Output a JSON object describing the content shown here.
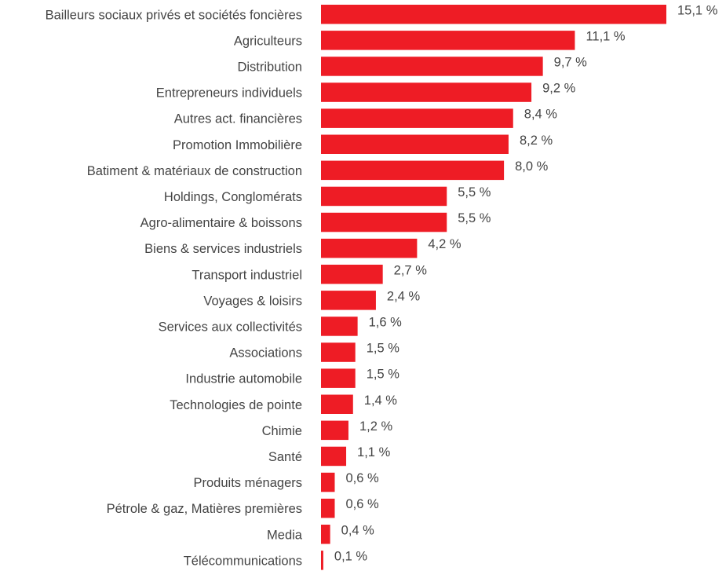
{
  "chart_data": {
    "type": "bar",
    "orientation": "horizontal",
    "categories": [
      "Bailleurs sociaux privés et sociétés foncières",
      "Agriculteurs",
      "Distribution",
      "Entrepreneurs individuels",
      "Autres act. financières",
      "Promotion Immobilière",
      "Batiment & matériaux de construction",
      "Holdings, Conglomérats",
      "Agro-alimentaire & boissons",
      "Biens & services industriels",
      "Transport industriel",
      "Voyages & loisirs",
      "Services aux collectivités",
      "Associations",
      "Industrie automobile",
      "Technologies de pointe",
      "Chimie",
      "Santé",
      "Produits ménagers",
      "Pétrole & gaz, Matières premières",
      "Media",
      "Télécommunications"
    ],
    "values": [
      15.1,
      11.1,
      9.7,
      9.2,
      8.4,
      8.2,
      8.0,
      5.5,
      5.5,
      4.2,
      2.7,
      2.4,
      1.6,
      1.5,
      1.5,
      1.4,
      1.2,
      1.1,
      0.6,
      0.6,
      0.4,
      0.1
    ],
    "value_labels": [
      "15,1 %",
      "11,1 %",
      "9,7 %",
      "9,2 %",
      "8,4 %",
      "8,2 %",
      "8,0 %",
      "5,5 %",
      "5,5 %",
      "4,2 %",
      "2,7 %",
      "2,4 %",
      "1,6 %",
      "1,5 %",
      "1,5 %",
      "1,4 %",
      "1,2 %",
      "1,1 %",
      "0,6 %",
      "0,6 %",
      "0,4 %",
      "0,1 %"
    ],
    "title": "",
    "xlabel": "",
    "ylabel": "",
    "xlim": [
      0,
      15.1
    ],
    "grid": false,
    "legend": "none",
    "bar_color": "#ee1c25"
  }
}
